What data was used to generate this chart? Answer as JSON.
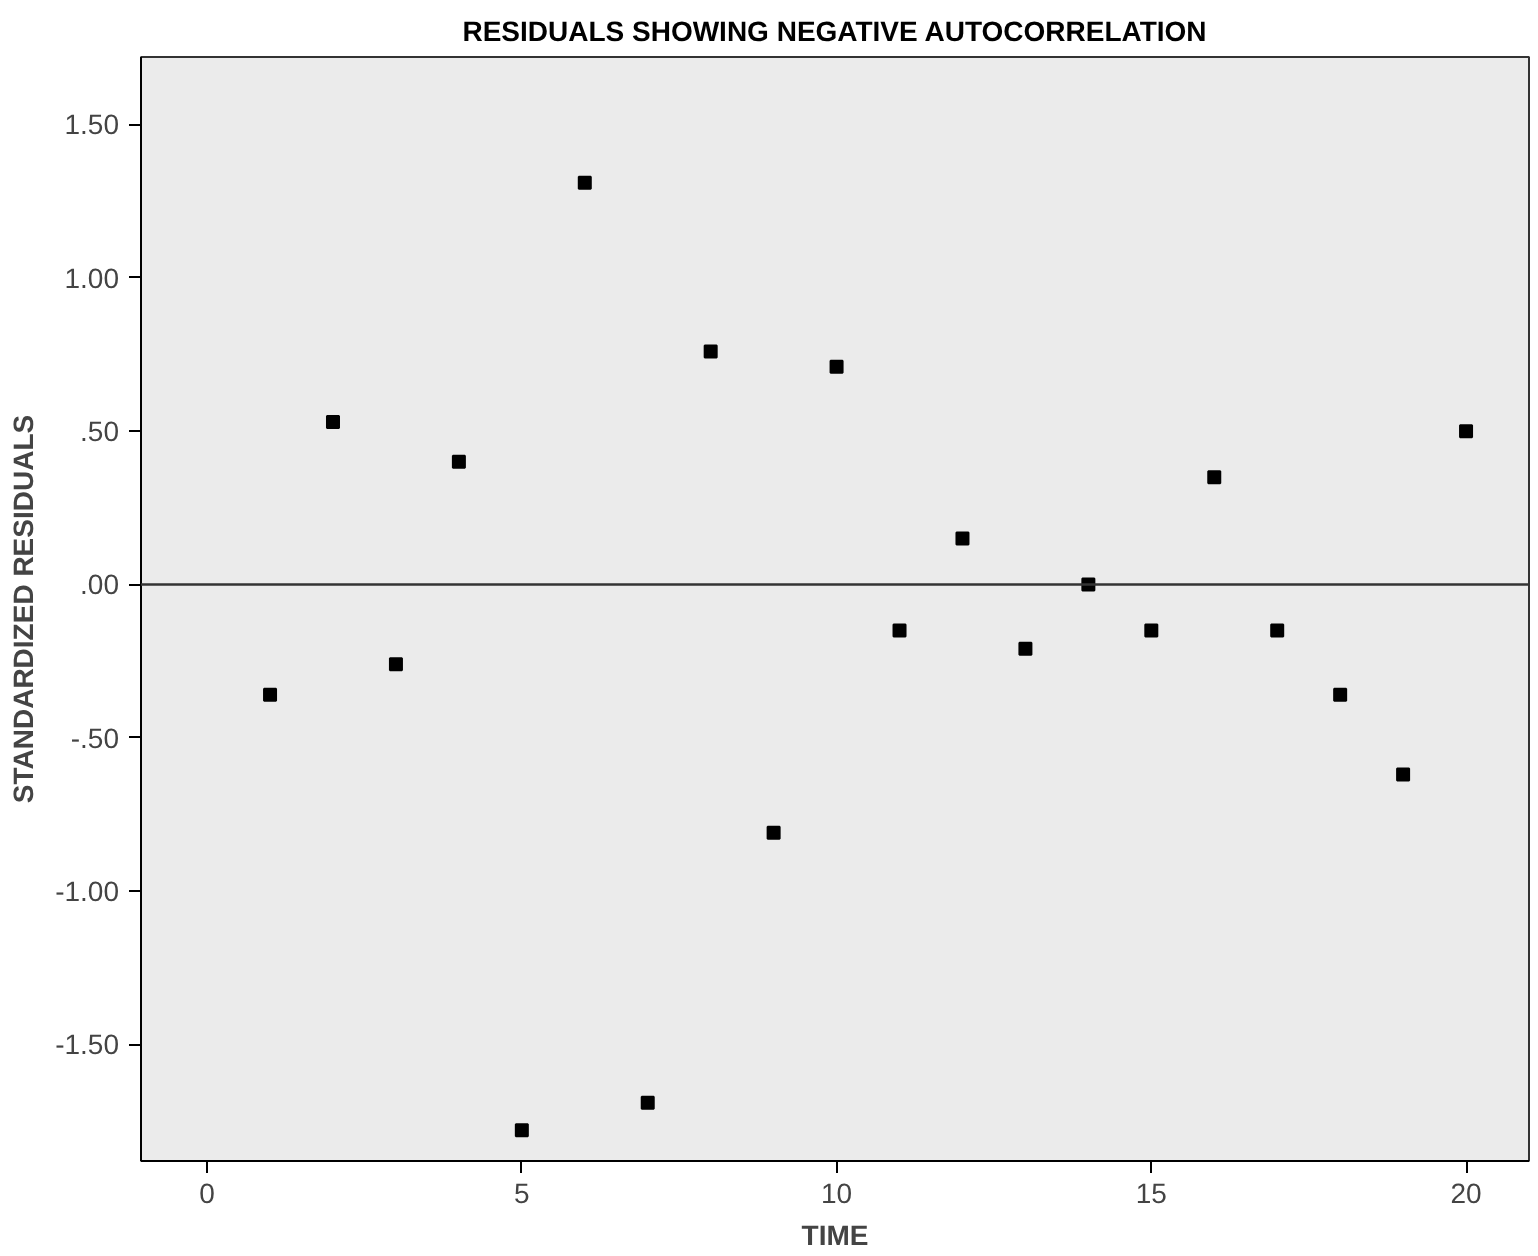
{
  "chart_data": {
    "type": "scatter",
    "title": "RESIDUALS SHOWING NEGATIVE AUTOCORRELATION",
    "xlabel": "TIME",
    "ylabel": "STANDARDIZED RESIDUALS",
    "x": [
      1,
      2,
      3,
      4,
      5,
      6,
      7,
      8,
      9,
      10,
      11,
      12,
      13,
      14,
      15,
      16,
      17,
      18,
      19,
      20
    ],
    "series": [
      {
        "color": "#000000",
        "values": [
          -0.36,
          0.53,
          -0.26,
          0.4,
          -1.78,
          1.31,
          -1.69,
          0.76,
          -0.81,
          0.71,
          -0.15,
          0.15,
          -0.21,
          0.0,
          -0.15,
          0.35,
          -0.15,
          -0.36,
          -0.62,
          0.5
        ]
      }
    ],
    "xlim": [
      -1.05,
      21.0
    ],
    "ylim": [
      -1.88,
      1.72
    ],
    "xticks": [
      0,
      5,
      10,
      15,
      20
    ],
    "yticks": [
      {
        "value": -1.5,
        "label": "-1.50"
      },
      {
        "value": -1,
        "label": "-1.00"
      },
      {
        "value": -0.5,
        "label": "-.50"
      },
      {
        "value": 0,
        "label": ".00"
      },
      {
        "value": 0.5,
        "label": ".50"
      },
      {
        "value": 1,
        "label": "1.00"
      },
      {
        "value": 1.5,
        "label": "1.50"
      }
    ],
    "ref_lines": [
      {
        "axis": "y",
        "value": 0,
        "color": "#333333"
      }
    ],
    "grid": false,
    "marker": "square"
  }
}
